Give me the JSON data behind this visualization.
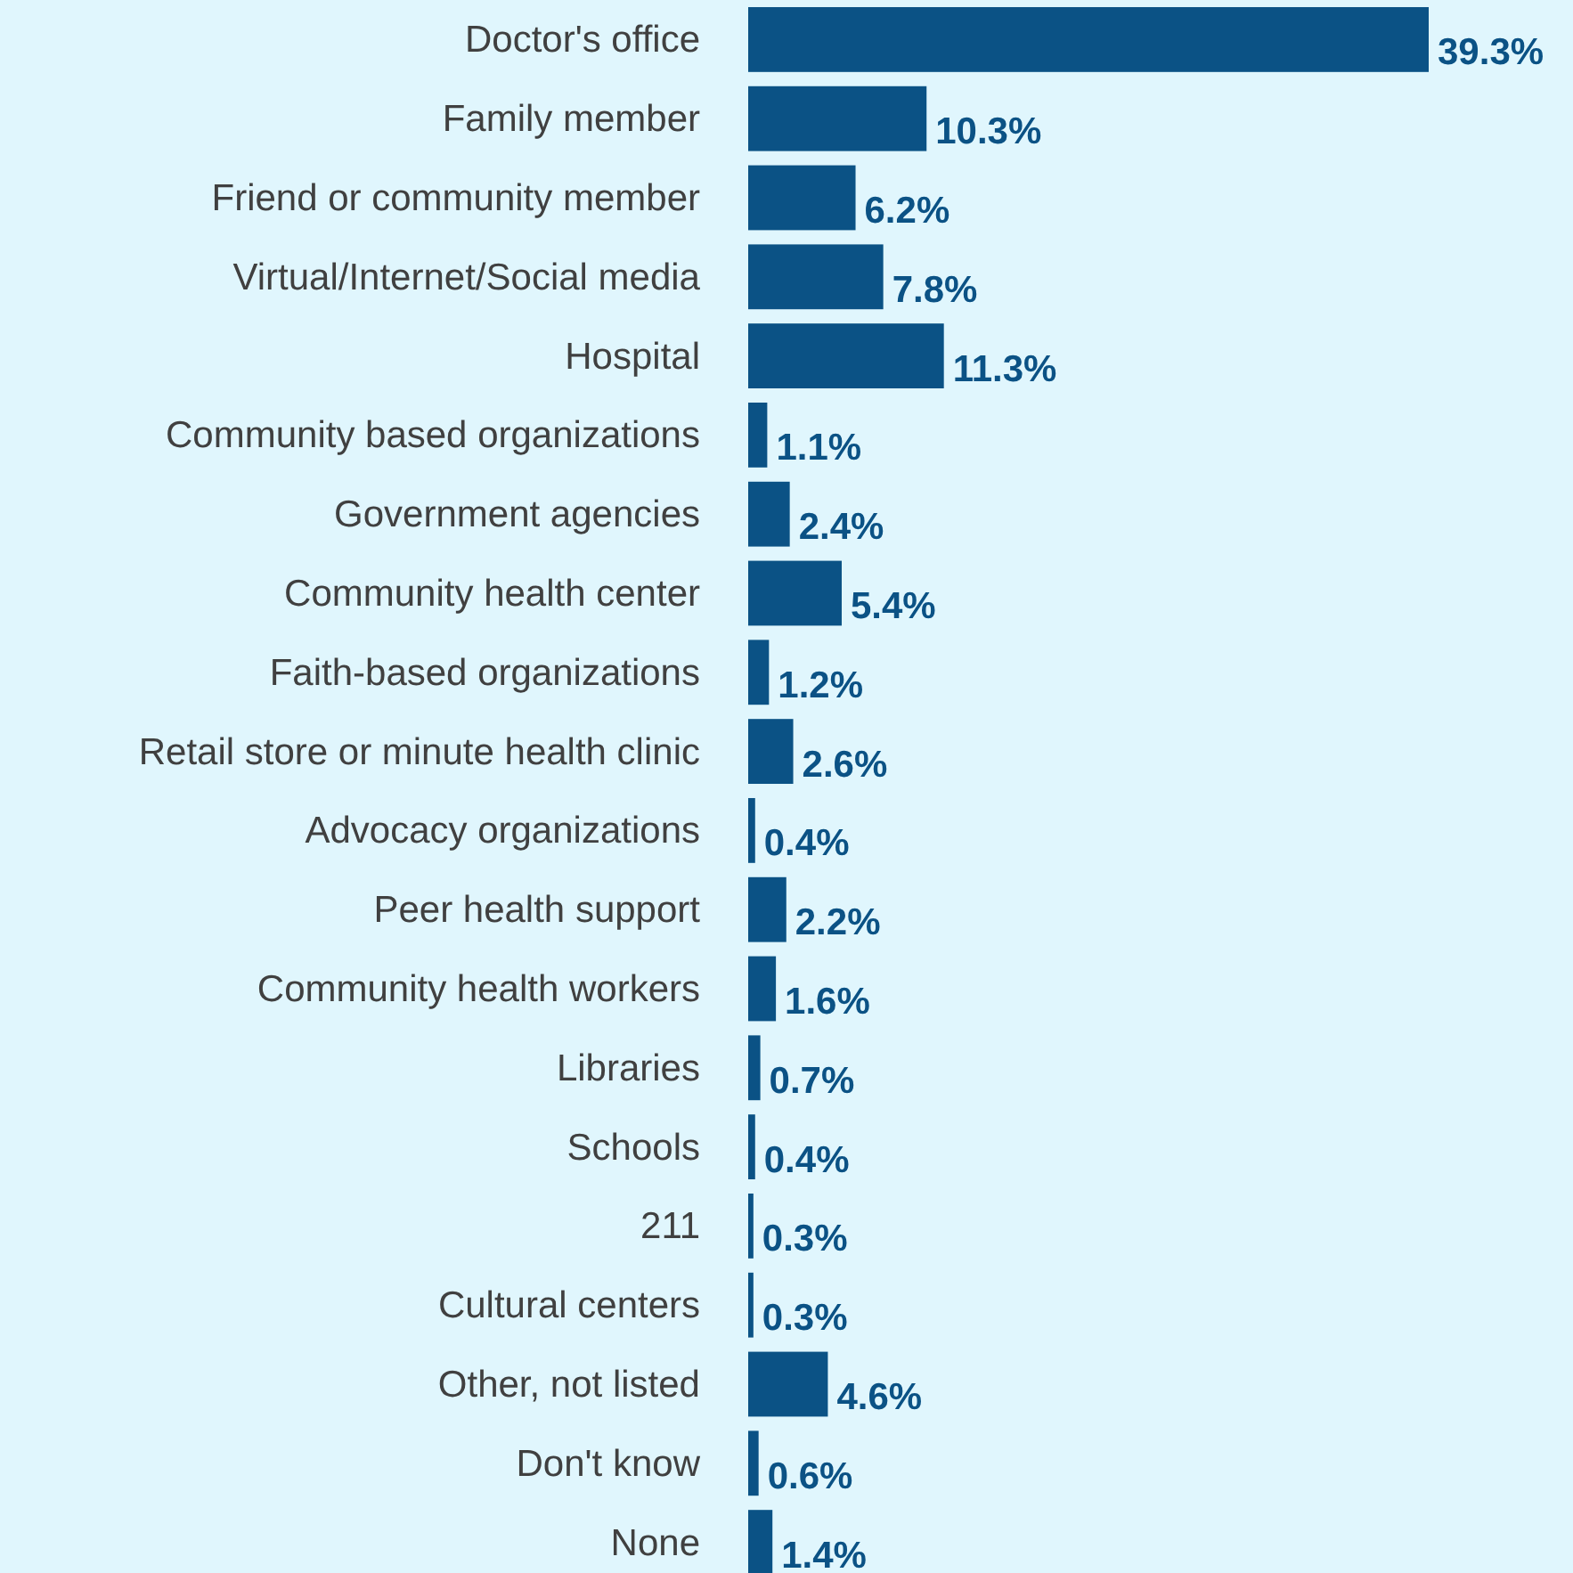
{
  "chart_data": {
    "type": "bar",
    "orientation": "horizontal",
    "color": "#0b5285",
    "value_labels": [
      "39.3%",
      "10.3%",
      "6.2%",
      "7.8%",
      "11.3%",
      "1.1%",
      "2.4%",
      "5.4%",
      "1.2%",
      "2.6%",
      "0.4%",
      "2.2%",
      "1.6%",
      "0.7%",
      "0.4%",
      "0.3%",
      "0.3%",
      "4.6%",
      "0.6%",
      "1.4%"
    ],
    "categories": [
      "Doctor's office",
      "Family member",
      "Friend or community member",
      "Virtual/Internet/Social media",
      "Hospital",
      "Community based organizations",
      "Government agencies",
      "Community health center",
      "Faith-based organizations",
      "Retail store or minute health clinic",
      "Advocacy organizations",
      "Peer health support",
      "Community health workers",
      "Libraries",
      "Schools",
      "211",
      "Cultural centers",
      "Other, not listed",
      "Don't know",
      "None"
    ],
    "values": [
      39.3,
      10.3,
      6.2,
      7.8,
      11.3,
      1.1,
      2.4,
      5.4,
      1.2,
      2.6,
      0.4,
      2.2,
      1.6,
      0.7,
      0.4,
      0.3,
      0.3,
      4.6,
      0.6,
      1.4
    ]
  }
}
